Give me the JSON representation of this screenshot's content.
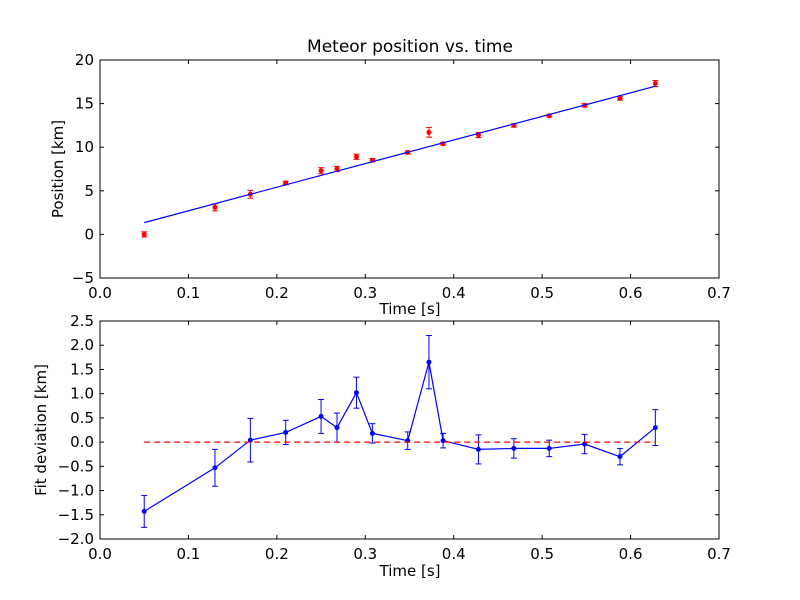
{
  "chart_data": [
    {
      "type": "scatter",
      "title": "Meteor position vs. time",
      "xlabel": "Time [s]",
      "ylabel": "Position [km]",
      "xlim": [
        0.0,
        0.7
      ],
      "ylim": [
        -5,
        20
      ],
      "xticks": [
        "0.0",
        "0.1",
        "0.2",
        "0.3",
        "0.4",
        "0.5",
        "0.6",
        "0.7"
      ],
      "yticks": [
        "−5",
        "0",
        "5",
        "10",
        "15",
        "20"
      ],
      "grid": false,
      "series": [
        {
          "kind": "errorbar-points",
          "color": "#ff0000",
          "x": [
            0.05,
            0.13,
            0.17,
            0.21,
            0.25,
            0.268,
            0.29,
            0.308,
            0.348,
            0.372,
            0.388,
            0.428,
            0.468,
            0.508,
            0.548,
            0.588,
            0.628
          ],
          "y": [
            0.0,
            3.1,
            4.6,
            5.9,
            7.3,
            7.5,
            8.9,
            8.5,
            9.4,
            11.7,
            10.4,
            11.4,
            12.5,
            13.6,
            14.8,
            15.6,
            17.3
          ],
          "yerr": [
            0.3,
            0.4,
            0.45,
            0.2,
            0.35,
            0.3,
            0.3,
            0.2,
            0.15,
            0.55,
            0.15,
            0.3,
            0.2,
            0.15,
            0.2,
            0.2,
            0.35
          ]
        },
        {
          "kind": "line",
          "color": "#0000ff",
          "x": [
            0.05,
            0.628
          ],
          "y": [
            1.35,
            17.0
          ]
        }
      ]
    },
    {
      "type": "line",
      "title": "",
      "xlabel": "Time [s]",
      "ylabel": "Fit deviation [km]",
      "xlim": [
        0.0,
        0.7
      ],
      "ylim": [
        -2.0,
        2.5
      ],
      "xticks": [
        "0.0",
        "0.1",
        "0.2",
        "0.3",
        "0.4",
        "0.5",
        "0.6",
        "0.7"
      ],
      "yticks": [
        "−2.0",
        "−1.5",
        "−1.0",
        "−0.5",
        "0.0",
        "0.5",
        "1.0",
        "1.5",
        "2.0",
        "2.5"
      ],
      "grid": false,
      "series": [
        {
          "kind": "errorbar-line",
          "color": "#0000ff",
          "x": [
            0.05,
            0.13,
            0.17,
            0.21,
            0.25,
            0.268,
            0.29,
            0.308,
            0.348,
            0.372,
            0.388,
            0.428,
            0.468,
            0.508,
            0.548,
            0.588,
            0.628
          ],
          "y": [
            -1.43,
            -0.53,
            0.04,
            0.2,
            0.53,
            0.3,
            1.02,
            0.18,
            0.03,
            1.65,
            0.03,
            -0.15,
            -0.13,
            -0.13,
            -0.04,
            -0.3,
            0.3
          ],
          "yerr": [
            0.33,
            0.38,
            0.45,
            0.25,
            0.35,
            0.3,
            0.32,
            0.2,
            0.18,
            0.55,
            0.15,
            0.3,
            0.2,
            0.17,
            0.2,
            0.17,
            0.37
          ]
        },
        {
          "kind": "dashed-line",
          "color": "#ff0000",
          "x": [
            0.05,
            0.628
          ],
          "y": [
            0.0,
            0.0
          ]
        }
      ]
    }
  ]
}
